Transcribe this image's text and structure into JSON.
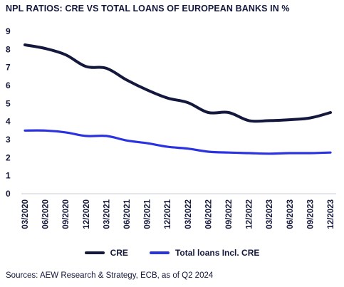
{
  "title": "NPL RATIOS: CRE VS TOTAL LOANS OF EUROPEAN BANKS IN %",
  "source": "Sources: AEW Research & Strategy, ECB, as of Q2 2024",
  "chart_data": {
    "type": "line",
    "title": "NPL RATIOS: CRE VS TOTAL LOANS OF EUROPEAN BANKS IN %",
    "xlabel": "",
    "ylabel": "",
    "ylim": [
      0,
      9
    ],
    "yticks": [
      "0",
      "1",
      "2",
      "3",
      "4",
      "5",
      "6",
      "7",
      "8",
      "9"
    ],
    "grid": false,
    "legend_position": "bottom",
    "x": [
      "03/2020",
      "06/2020",
      "09/2020",
      "12/2020",
      "03/2021",
      "06/2021",
      "09/2021",
      "12/2021",
      "03/2022",
      "06/2022",
      "09/2022",
      "12/2022",
      "03/2023",
      "06/2023",
      "09/2023",
      "12/2023"
    ],
    "series": [
      {
        "name": "CRE",
        "color": "#14183c",
        "values": [
          8.25,
          8.05,
          7.7,
          7.05,
          6.95,
          6.3,
          5.75,
          5.3,
          5.05,
          4.5,
          4.5,
          4.05,
          4.05,
          4.1,
          4.2,
          4.5
        ]
      },
      {
        "name": "Total loans Incl. CRE",
        "color": "#2b33e0",
        "values": [
          3.5,
          3.5,
          3.4,
          3.2,
          3.2,
          2.95,
          2.8,
          2.6,
          2.5,
          2.33,
          2.28,
          2.25,
          2.22,
          2.25,
          2.25,
          2.28
        ]
      }
    ]
  }
}
